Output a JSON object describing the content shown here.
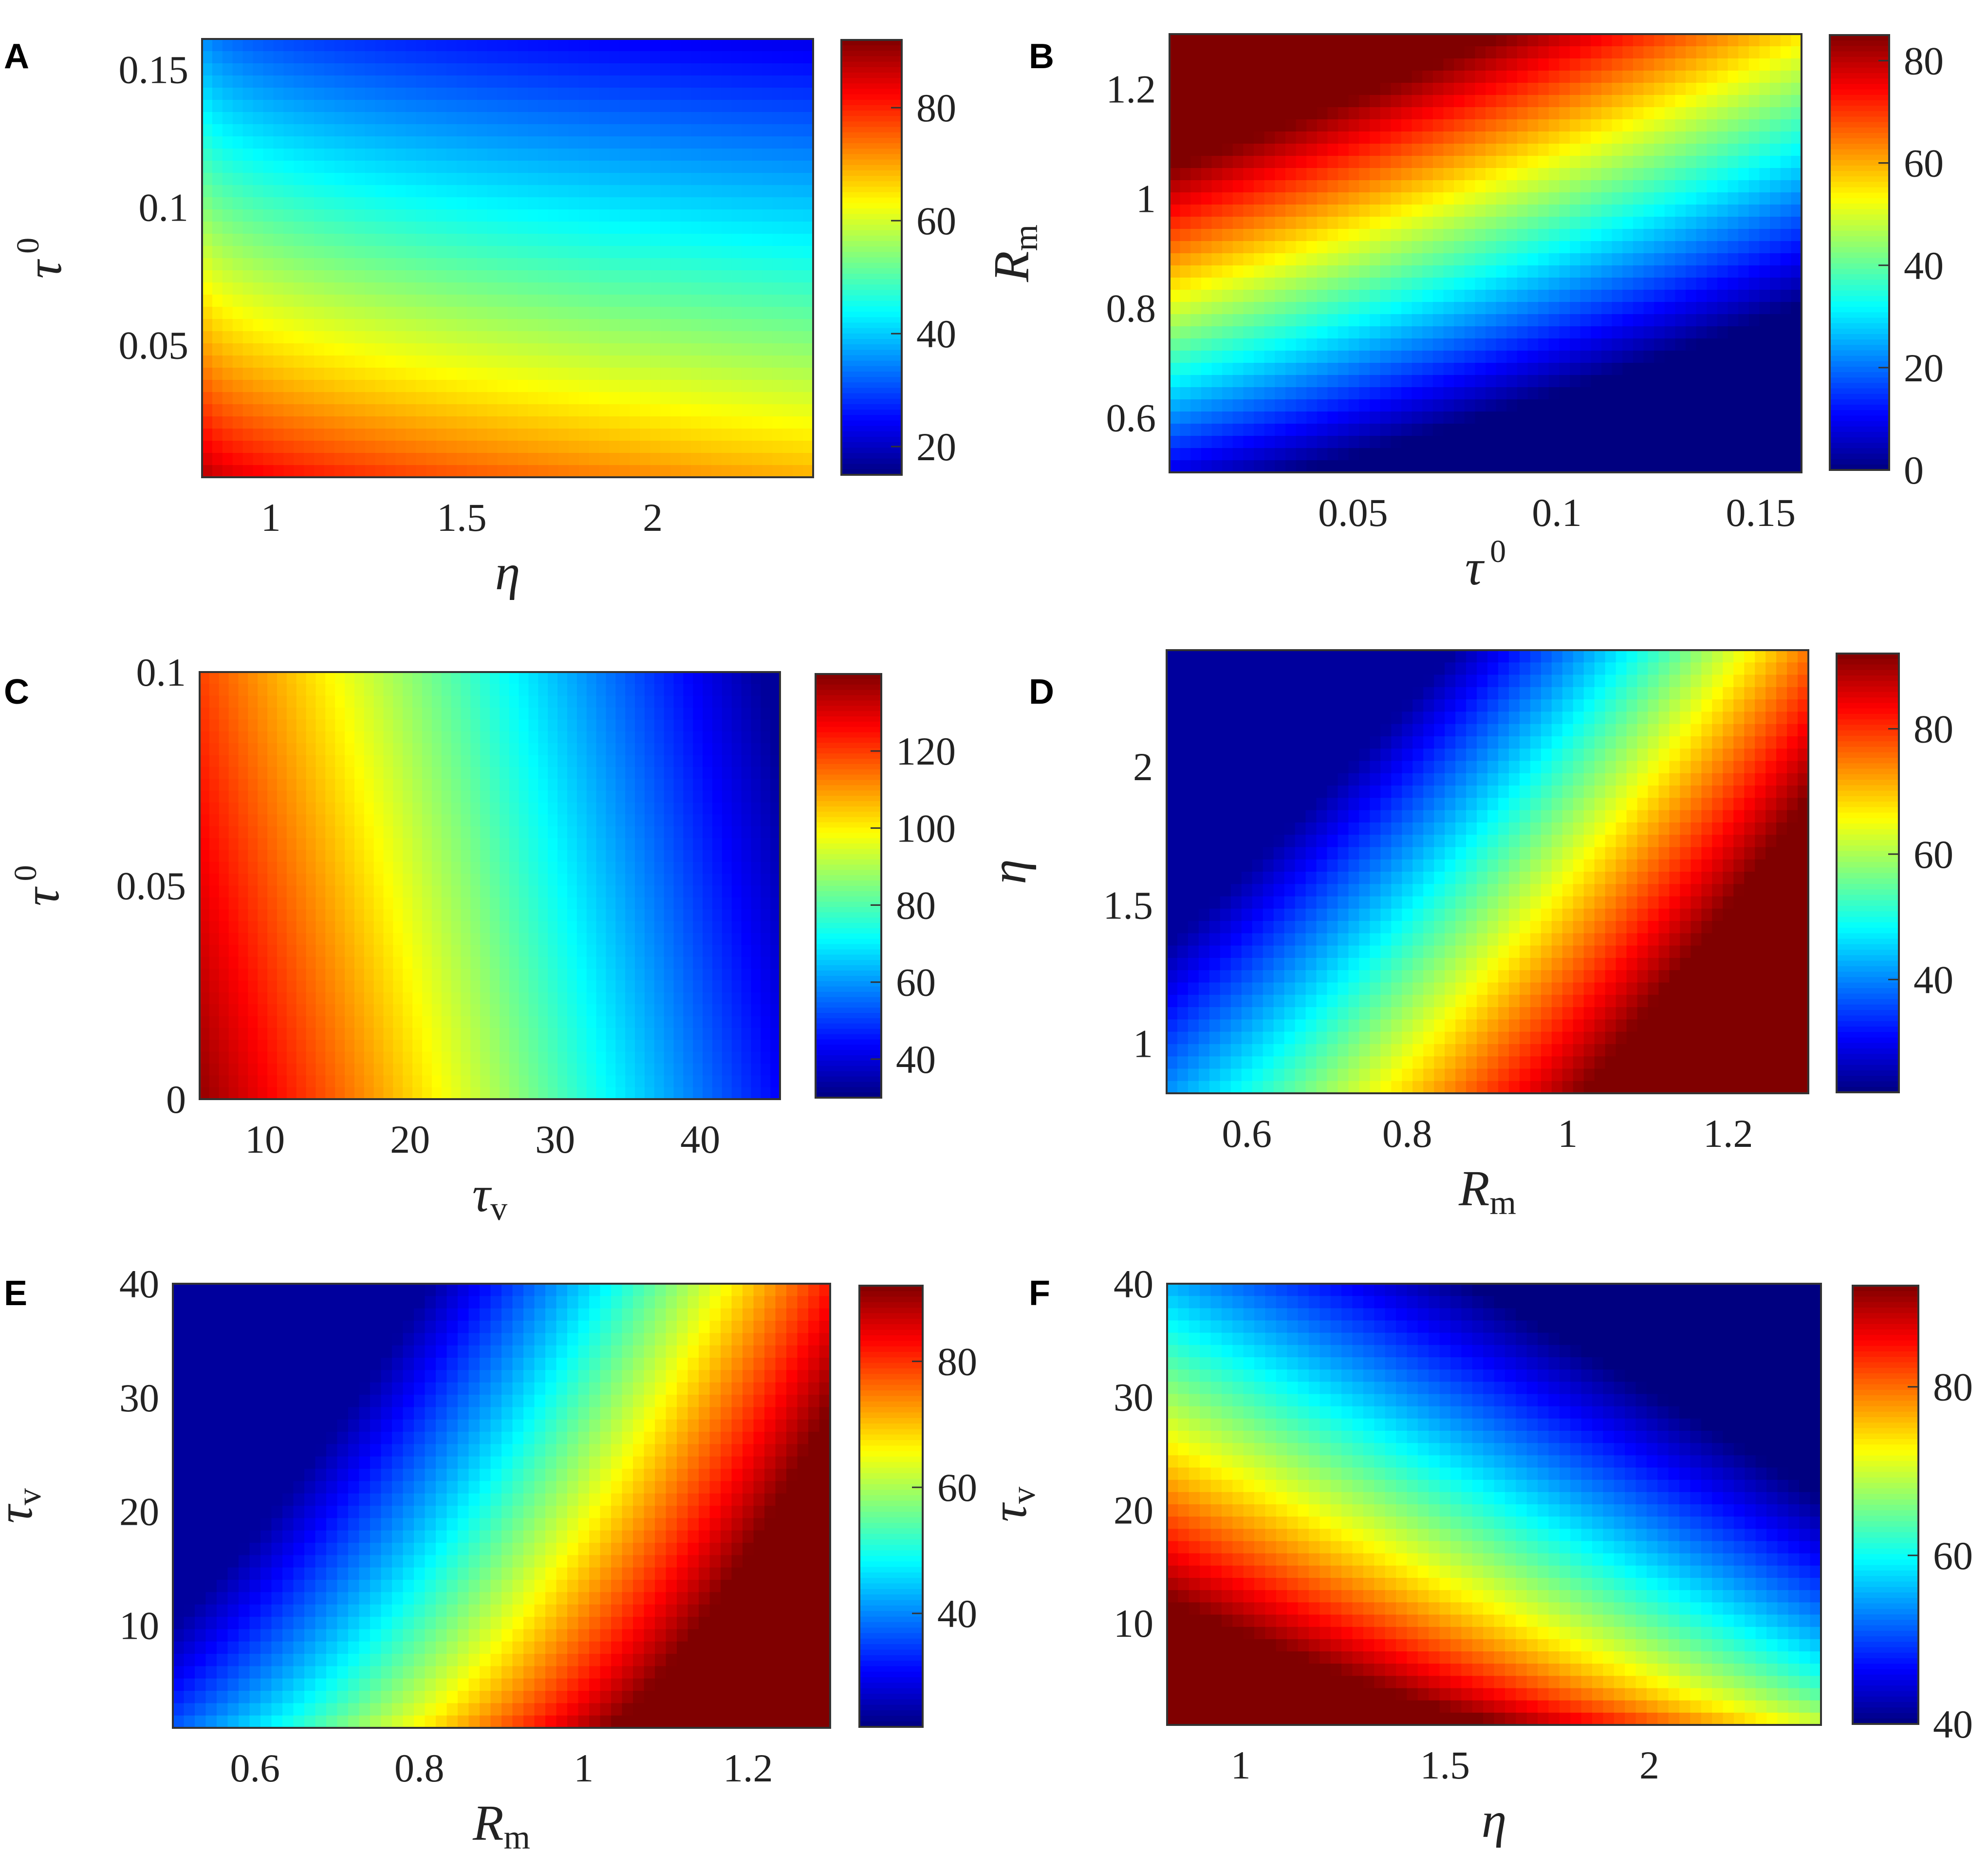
{
  "chart_data": [
    {
      "type": "heatmap",
      "panel": "A",
      "xlabel": "η",
      "ylabel": "τ 0",
      "xlim": [
        0.82,
        2.42
      ],
      "ylim": [
        0.002,
        0.161
      ],
      "xticks": [
        1,
        1.5,
        2
      ],
      "xtick_labels": [
        "1",
        "1.5",
        "2"
      ],
      "yticks": [
        0.05,
        0.1,
        0.15
      ],
      "ytick_labels": [
        "0.05",
        "0.1",
        "0.15"
      ],
      "colorbar": {
        "min": 15,
        "max": 92,
        "ticks": [
          20,
          40,
          60,
          80
        ],
        "labels": [
          "20",
          "40",
          "60",
          "80"
        ],
        "colormap": "jet"
      },
      "value_range": [
        17,
        90
      ],
      "trend": "value decreases with increasing η and increasing τ 0; maximum at low η, low τ 0"
    },
    {
      "type": "heatmap",
      "panel": "B",
      "xlabel": "τ 0",
      "ylabel": "Rm",
      "xlim": [
        0.005,
        0.16
      ],
      "ylim": [
        0.5,
        1.3
      ],
      "xticks": [
        0.05,
        0.1,
        0.15
      ],
      "xtick_labels": [
        "0.05",
        "0.1",
        "0.15"
      ],
      "yticks": [
        0.6,
        0.8,
        1,
        1.2
      ],
      "ytick_labels": [
        "0.6",
        "0.8",
        "1",
        "1.2"
      ],
      "colorbar": {
        "min": 0,
        "max": 85,
        "ticks": [
          0,
          20,
          40,
          60,
          80
        ],
        "labels": [
          "0",
          "20",
          "40",
          "60",
          "80"
        ],
        "colormap": "jet"
      },
      "value_range": [
        0,
        85
      ],
      "trend": "value increases with Rm and decreases with τ 0; saturates at 0 for low Rm and high τ 0"
    },
    {
      "type": "heatmap",
      "panel": "C",
      "xlabel": "τv",
      "ylabel": "τ 0",
      "xlim": [
        5.5,
        45.5
      ],
      "ylim": [
        0,
        0.1
      ],
      "xticks": [
        10,
        20,
        30,
        40
      ],
      "xtick_labels": [
        "10",
        "20",
        "30",
        "40"
      ],
      "yticks": [
        0,
        0.05,
        0.1
      ],
      "ytick_labels": [
        "0",
        "0.05",
        "0.1"
      ],
      "colorbar": {
        "min": 30,
        "max": 140,
        "ticks": [
          40,
          60,
          80,
          100,
          120
        ],
        "labels": [
          "40",
          "60",
          "80",
          "100",
          "120"
        ],
        "colormap": "jet"
      },
      "value_range": [
        33,
        138
      ],
      "trend": "value decreases with increasing τv and slightly with τ 0"
    },
    {
      "type": "heatmap",
      "panel": "D",
      "xlabel": "Rm",
      "ylabel": "η",
      "xlim": [
        0.5,
        1.3
      ],
      "ylim": [
        0.82,
        2.42
      ],
      "xticks": [
        0.6,
        0.8,
        1,
        1.2
      ],
      "xtick_labels": [
        "0.6",
        "0.8",
        "1",
        "1.2"
      ],
      "yticks": [
        1,
        1.5,
        2
      ],
      "ytick_labels": [
        "1",
        "1.5",
        "2"
      ],
      "colorbar": {
        "min": 22,
        "max": 92,
        "ticks": [
          40,
          60,
          80
        ],
        "labels": [
          "40",
          "60",
          "80"
        ],
        "colormap": "jet"
      },
      "value_range": [
        24,
        92
      ],
      "trend": "value increases with Rm and decreases with η; saturates at maximum for high Rm, low η"
    },
    {
      "type": "heatmap",
      "panel": "E",
      "xlabel": "Rm",
      "ylabel": "τv",
      "xlim": [
        0.5,
        1.3
      ],
      "ylim": [
        1,
        40
      ],
      "xticks": [
        0.6,
        0.8,
        1,
        1.2
      ],
      "xtick_labels": [
        "0.6",
        "0.8",
        "1",
        "1.2"
      ],
      "yticks": [
        10,
        20,
        30,
        40
      ],
      "ytick_labels": [
        "10",
        "20",
        "30",
        "40"
      ],
      "colorbar": {
        "min": 22,
        "max": 92,
        "ticks": [
          40,
          60,
          80
        ],
        "labels": [
          "40",
          "60",
          "80"
        ],
        "colormap": "jet"
      },
      "value_range": [
        24,
        92
      ],
      "trend": "value increases with Rm and decreases with τv; saturates at maximum for high Rm, low τv"
    },
    {
      "type": "heatmap",
      "panel": "F",
      "xlabel": "η",
      "ylabel": "τv",
      "xlim": [
        0.82,
        2.42
      ],
      "ylim": [
        1,
        40
      ],
      "xticks": [
        1,
        1.5,
        2
      ],
      "xtick_labels": [
        "1",
        "1.5",
        "2"
      ],
      "yticks": [
        10,
        20,
        30,
        40
      ],
      "ytick_labels": [
        "10",
        "20",
        "30",
        "40"
      ],
      "colorbar": {
        "min": 40,
        "max": 92,
        "ticks": [
          40,
          60,
          80
        ],
        "labels": [
          "40",
          "60",
          "80"
        ],
        "colormap": "jet"
      },
      "value_range": [
        40,
        92
      ],
      "trend": "value decreases with η and with τv; saturates at maximum for low η, low τv"
    }
  ]
}
